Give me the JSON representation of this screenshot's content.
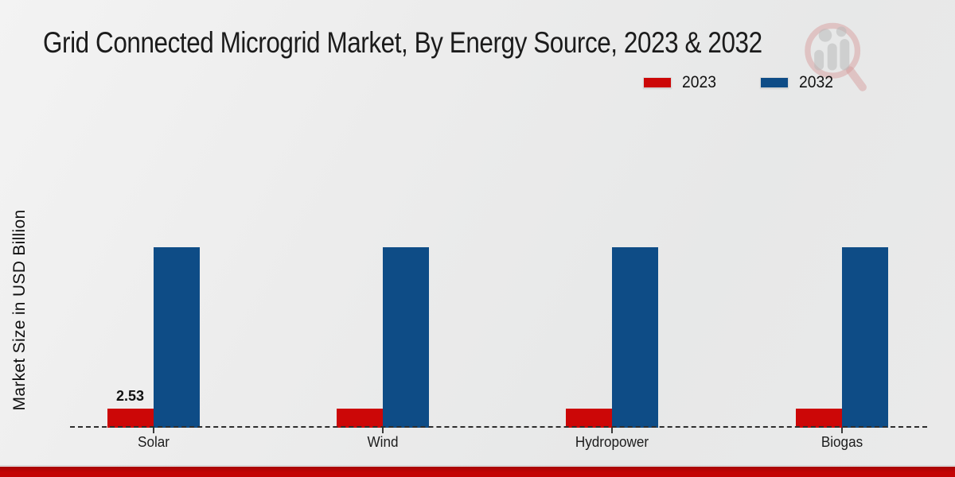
{
  "chart_data": {
    "type": "bar",
    "title": "Grid Connected Microgrid Market, By Energy Source, 2023 & 2032",
    "ylabel": "Market Size in USD Billion",
    "xlabel": "",
    "categories": [
      "Solar",
      "Wind",
      "Hydropower",
      "Biogas"
    ],
    "series": [
      {
        "name": "2023",
        "color": "#cc0707",
        "values": [
          2.53,
          2.6,
          2.55,
          2.55
        ],
        "labels": [
          "2.53",
          "",
          "",
          ""
        ]
      },
      {
        "name": "2032",
        "color": "#0e4c86",
        "values": [
          24.4,
          24.4,
          24.4,
          24.4
        ],
        "labels": [
          "",
          "",
          "",
          ""
        ]
      }
    ],
    "ylim": [
      0,
      26
    ],
    "grid": false,
    "axis_style": "dashed-baseline",
    "legend_position": "top-right"
  },
  "legend": {
    "items": [
      {
        "label": "2023",
        "color": "#cc0707"
      },
      {
        "label": "2032",
        "color": "#0e4c86"
      }
    ]
  },
  "icons": {
    "watermark": "magnifier-bar-chart-logo"
  },
  "colors": {
    "bar_red": "#cc0707",
    "bar_blue": "#0e4c86",
    "footer_red": "#c40404",
    "background": "#ececec",
    "axis": "#2e2e2e"
  }
}
